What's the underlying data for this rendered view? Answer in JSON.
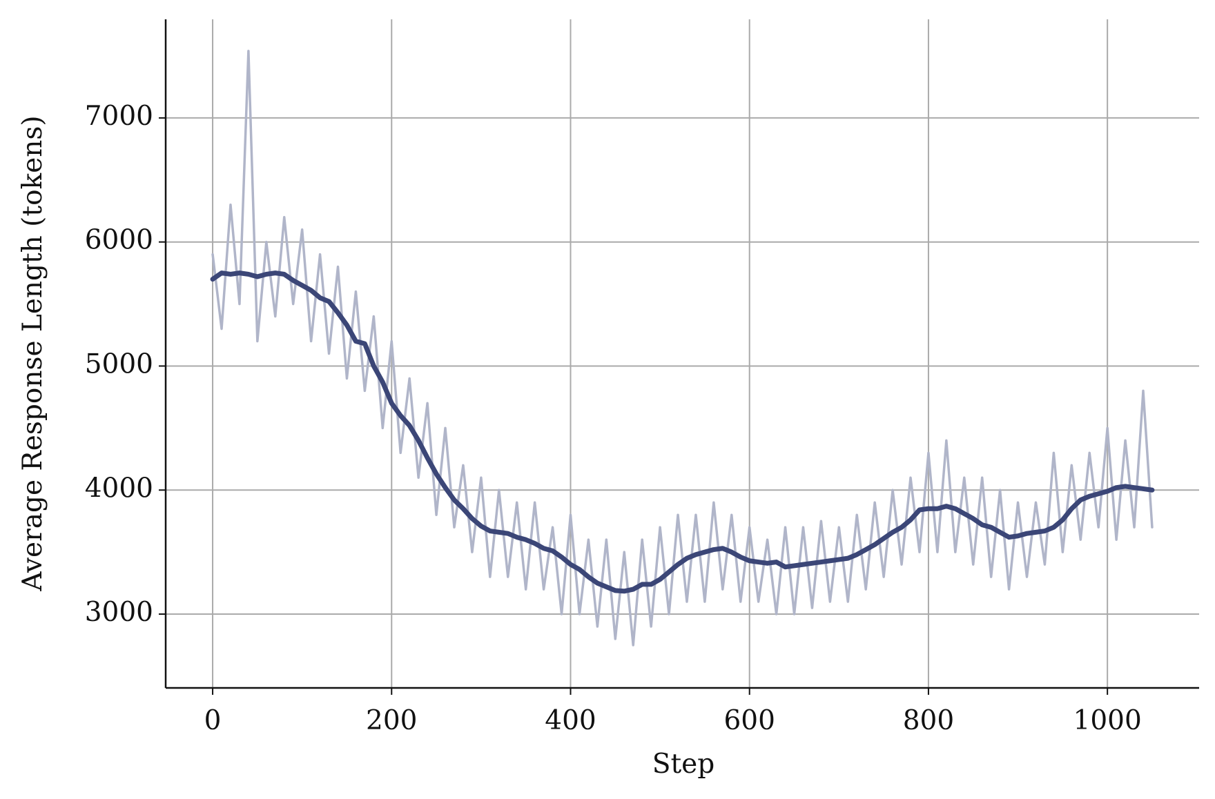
{
  "chart_data": {
    "type": "line",
    "xlabel": "Step",
    "ylabel": "Average Response Length (tokens)",
    "x": [
      0,
      10,
      20,
      30,
      40,
      50,
      60,
      70,
      80,
      90,
      100,
      110,
      120,
      130,
      140,
      150,
      160,
      170,
      180,
      190,
      200,
      210,
      220,
      230,
      240,
      250,
      260,
      270,
      280,
      290,
      300,
      310,
      320,
      330,
      340,
      350,
      360,
      370,
      380,
      390,
      400,
      410,
      420,
      430,
      440,
      450,
      460,
      470,
      480,
      490,
      500,
      510,
      520,
      530,
      540,
      550,
      560,
      570,
      580,
      590,
      600,
      610,
      620,
      630,
      640,
      650,
      660,
      670,
      680,
      690,
      700,
      710,
      720,
      730,
      740,
      750,
      760,
      770,
      780,
      790,
      800,
      810,
      820,
      830,
      840,
      850,
      860,
      870,
      880,
      890,
      900,
      910,
      920,
      930,
      940,
      950,
      960,
      970,
      980,
      990,
      1000,
      1010,
      1020,
      1030,
      1040,
      1050
    ],
    "series": [
      {
        "color": "#b0b5c9",
        "width": 3.5,
        "values": [
          5900,
          5300,
          6300,
          5500,
          7540,
          5200,
          6000,
          5400,
          6200,
          5500,
          6100,
          5200,
          5900,
          5100,
          5800,
          4900,
          5600,
          4800,
          5400,
          4500,
          5200,
          4300,
          4900,
          4100,
          4700,
          3800,
          4500,
          3700,
          4200,
          3500,
          4100,
          3300,
          4000,
          3300,
          3900,
          3200,
          3900,
          3200,
          3700,
          3000,
          3800,
          3000,
          3600,
          2900,
          3600,
          2800,
          3500,
          2750,
          3600,
          2900,
          3700,
          3000,
          3800,
          3100,
          3800,
          3100,
          3900,
          3200,
          3800,
          3100,
          3700,
          3100,
          3600,
          3000,
          3700,
          3000,
          3700,
          3050,
          3750,
          3100,
          3700,
          3100,
          3800,
          3200,
          3900,
          3300,
          4000,
          3400,
          4100,
          3500,
          4300,
          3500,
          4400,
          3500,
          4100,
          3400,
          4100,
          3300,
          4000,
          3200,
          3900,
          3300,
          3900,
          3400,
          4300,
          3500,
          4200,
          3600,
          4300,
          3700,
          4500,
          3600,
          4400,
          3700,
          4800,
          3700
        ]
      },
      {
        "color": "#3b4677",
        "width": 7,
        "values": [
          5700,
          5750,
          5740,
          5750,
          5740,
          5720,
          5740,
          5750,
          5740,
          5690,
          5650,
          5610,
          5550,
          5520,
          5430,
          5330,
          5200,
          5180,
          5000,
          4870,
          4700,
          4600,
          4520,
          4400,
          4260,
          4130,
          4020,
          3920,
          3850,
          3770,
          3710,
          3670,
          3660,
          3650,
          3620,
          3600,
          3570,
          3530,
          3510,
          3460,
          3400,
          3360,
          3300,
          3250,
          3220,
          3190,
          3185,
          3200,
          3240,
          3240,
          3280,
          3340,
          3400,
          3450,
          3480,
          3500,
          3520,
          3530,
          3500,
          3460,
          3430,
          3420,
          3410,
          3420,
          3380,
          3390,
          3400,
          3410,
          3420,
          3430,
          3440,
          3450,
          3480,
          3520,
          3560,
          3610,
          3660,
          3700,
          3760,
          3840,
          3850,
          3850,
          3870,
          3850,
          3810,
          3770,
          3720,
          3700,
          3660,
          3620,
          3630,
          3650,
          3660,
          3670,
          3700,
          3760,
          3850,
          3920,
          3950,
          3970,
          3990,
          4020,
          4030,
          4020,
          4010,
          4000
        ]
      }
    ],
    "xlim": [
      -52.5,
      1102.5
    ],
    "ylim": [
      2405,
      7795
    ],
    "xticks": [
      0,
      200,
      400,
      600,
      800,
      1000
    ],
    "yticks": [
      3000,
      4000,
      5000,
      6000,
      7000
    ],
    "grid": true
  }
}
